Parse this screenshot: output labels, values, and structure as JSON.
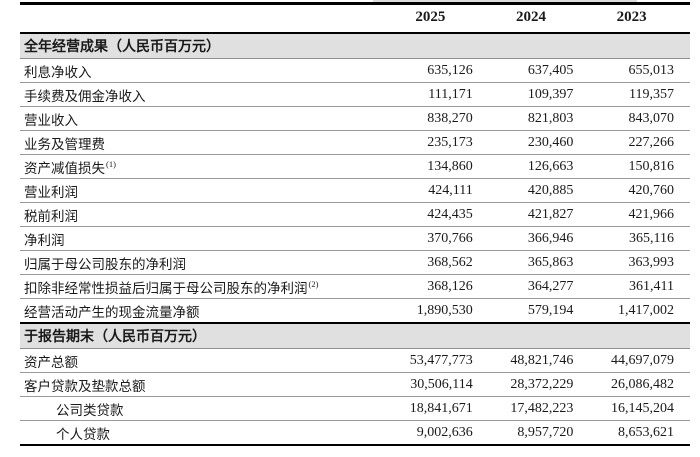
{
  "table": {
    "columns": [
      "2025",
      "2024",
      "2023"
    ],
    "sections": [
      {
        "title_bold": "全年经营成果",
        "title_rest": "（人民币百万元）",
        "rows": [
          {
            "label": "利息净收入",
            "sup": "",
            "indent": false,
            "values": [
              "635,126",
              "637,405",
              "655,013"
            ]
          },
          {
            "label": "手续费及佣金净收入",
            "sup": "",
            "indent": false,
            "values": [
              "111,171",
              "109,397",
              "119,357"
            ]
          },
          {
            "label": "营业收入",
            "sup": "",
            "indent": false,
            "values": [
              "838,270",
              "821,803",
              "843,070"
            ]
          },
          {
            "label": "业务及管理费",
            "sup": "",
            "indent": false,
            "values": [
              "235,173",
              "230,460",
              "227,266"
            ]
          },
          {
            "label": "资产减值损失",
            "sup": "(1)",
            "indent": false,
            "values": [
              "134,860",
              "126,663",
              "150,816"
            ]
          },
          {
            "label": "营业利润",
            "sup": "",
            "indent": false,
            "values": [
              "424,111",
              "420,885",
              "420,760"
            ]
          },
          {
            "label": "税前利润",
            "sup": "",
            "indent": false,
            "values": [
              "424,435",
              "421,827",
              "421,966"
            ]
          },
          {
            "label": "净利润",
            "sup": "",
            "indent": false,
            "values": [
              "370,766",
              "366,946",
              "365,116"
            ]
          },
          {
            "label": "归属于母公司股东的净利润",
            "sup": "",
            "indent": false,
            "values": [
              "368,562",
              "365,863",
              "363,993"
            ]
          },
          {
            "label": "扣除非经常性损益后归属于母公司股东的净利润",
            "sup": "(2)",
            "indent": false,
            "values": [
              "368,126",
              "364,277",
              "361,411"
            ]
          },
          {
            "label": "经营活动产生的现金流量净额",
            "sup": "",
            "indent": false,
            "values": [
              "1,890,530",
              "579,194",
              "1,417,002"
            ]
          }
        ]
      },
      {
        "title_bold": "于报告期末",
        "title_rest": "（人民币百万元）",
        "rows": [
          {
            "label": "资产总额",
            "sup": "",
            "indent": false,
            "values": [
              "53,477,773",
              "48,821,746",
              "44,697,079"
            ]
          },
          {
            "label": "客户贷款及垫款总额",
            "sup": "",
            "indent": false,
            "values": [
              "30,506,114",
              "28,372,229",
              "26,086,482"
            ]
          },
          {
            "label": "公司类贷款",
            "sup": "",
            "indent": true,
            "values": [
              "18,841,671",
              "17,482,223",
              "16,145,204"
            ]
          },
          {
            "label": "个人贷款",
            "sup": "",
            "indent": true,
            "values": [
              "9,002,636",
              "8,957,720",
              "8,653,621"
            ]
          }
        ]
      }
    ]
  },
  "colors": {
    "section_band_bg": "#e0e0e0",
    "thick_rule": "#000000",
    "thin_rule": "#9a9a9a",
    "text": "#1a1a1a"
  }
}
